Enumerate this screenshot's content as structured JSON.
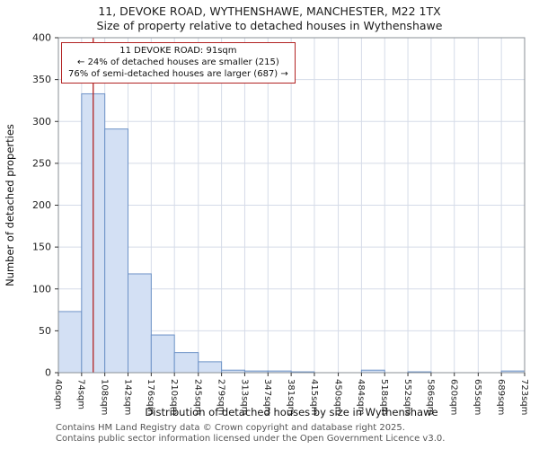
{
  "title": {
    "line1": "11, DEVOKE ROAD, WYTHENSHAWE, MANCHESTER, M22 1TX",
    "line2": "Size of property relative to detached houses in Wythenshawe"
  },
  "annotation": {
    "line1": "11 DEVOKE ROAD: 91sqm",
    "line2": "← 24% of detached houses are smaller (215)",
    "line3": "76% of semi-detached houses are larger (687) →"
  },
  "footer": {
    "line1": "Contains HM Land Registry data © Crown copyright and database right 2025.",
    "line2": "Contains public sector information licensed under the Open Government Licence v3.0."
  },
  "chart_data": {
    "type": "bar",
    "title": "11, DEVOKE ROAD, WYTHENSHAWE, MANCHESTER, M22 1TX",
    "subtitle": "Size of property relative to detached houses in Wythenshawe",
    "xlabel": "Distribution of detached houses by size in Wythenshawe",
    "ylabel": "Number of detached properties",
    "bin_edges": [
      40,
      74,
      108,
      142,
      176,
      210,
      245,
      279,
      313,
      347,
      381,
      415,
      450,
      484,
      518,
      552,
      586,
      620,
      655,
      689,
      723
    ],
    "tick_labels": [
      "40sqm",
      "74sqm",
      "108sqm",
      "142sqm",
      "176sqm",
      "210sqm",
      "245sqm",
      "279sqm",
      "313sqm",
      "347sqm",
      "381sqm",
      "415sqm",
      "450sqm",
      "484sqm",
      "518sqm",
      "552sqm",
      "586sqm",
      "620sqm",
      "655sqm",
      "689sqm",
      "723sqm"
    ],
    "values": [
      73,
      333,
      291,
      118,
      45,
      24,
      13,
      3,
      2,
      2,
      1,
      0,
      0,
      3,
      0,
      1,
      0,
      0,
      0,
      2
    ],
    "ylim": [
      0,
      400
    ],
    "ytick_step": 50,
    "grid": true,
    "legend": "none",
    "marker": {
      "value_sqm": 91,
      "color": "#b22222"
    },
    "colors": {
      "bar_fill": "#d3e0f4",
      "bar_edge": "#6e93c7",
      "grid": "#d5dbe8",
      "axis": "#8a8f96",
      "tick_text": "#222222",
      "label_text": "#111111"
    }
  }
}
